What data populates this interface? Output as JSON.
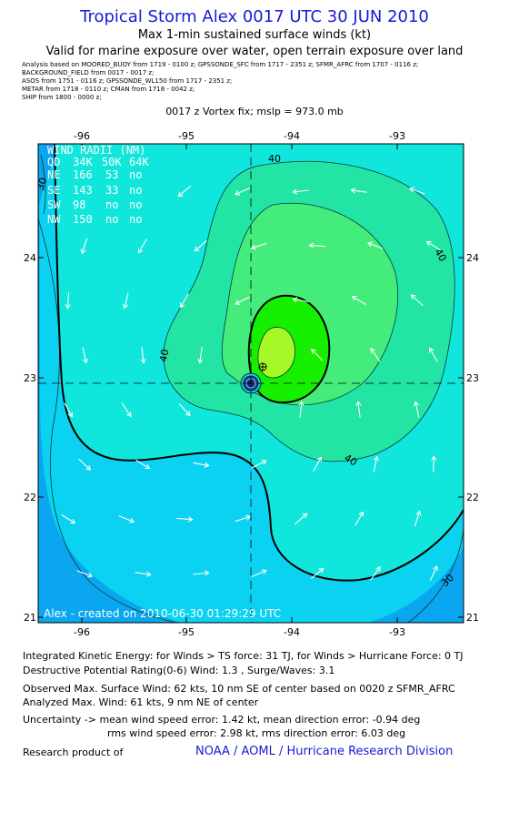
{
  "header": {
    "title": "Tropical Storm Alex 0017 UTC 30 JUN 2010",
    "subtitle": "Max 1-min sustained surface winds (kt)",
    "valid": "Valid for marine exposure over water, open terrain exposure over land"
  },
  "sources": [
    "Analysis based on  MOORED_BUOY from 1719 - 0100 z;  GPSSONDE_SFC from 1717 - 2351 z;  SFMR_AFRC from 1707 - 0116 z;",
    "BACKGROUND_FIELD from 0017 - 0017 z;",
    "ASOS from 1751 - 0116 z;  GPSSONDE_WL150 from 1717 - 2351 z;",
    "METAR from 1718 - 0110 z;  CMAN from 1718 - 0042 z;",
    "SHIP from 1800 - 0000 z;"
  ],
  "vortex_fix": "0017 z Vortex fix; mslp = 973.0 mb",
  "map": {
    "lon_ticks": [
      "-96",
      "-95",
      "-94",
      "-93"
    ],
    "lat_ticks": [
      "24",
      "23",
      "22",
      "21"
    ],
    "center": {
      "lon": -94.61,
      "lat": 22.95
    },
    "contour_labels": [
      "40",
      "40",
      "40",
      "30",
      "30",
      "40"
    ],
    "credit": "Alex  -  created on  2010-06-30 01:29:29 UTC",
    "colors": {
      "background": "#0ad2f0",
      "outer_blue": "#0aa6f0",
      "band_30_40": "#10e6dc",
      "band_40_50": "#22e4a4",
      "band_50_64": "#44ec7c",
      "band_64_80": "#16f000",
      "core": "#a6f826",
      "eye": "#1c4a96"
    }
  },
  "wind_radii": {
    "title": "WIND RADII (NM)",
    "header": [
      "QD",
      "34K",
      "50K",
      "64K"
    ],
    "rows": [
      [
        "NE",
        "166",
        "53",
        "no"
      ],
      [
        "SE",
        "143",
        "33",
        "no"
      ],
      [
        "SW",
        "98",
        "no",
        "no"
      ],
      [
        "NW",
        "150",
        "no",
        "no"
      ]
    ]
  },
  "info": {
    "ike": "Integrated Kinetic Energy:  for Winds > TS force: 31 TJ,  for Winds > Hurricane Force: 0 TJ",
    "dpr": "Destructive Potential Rating(0-6)   Wind: 1.3 , Surge/Waves: 3.1",
    "observed": "Observed Max. Surface Wind: 62 kts, 10 nm SE of center based on 0020 z SFMR_AFRC",
    "analyzed": "Analyzed Max. Wind: 61 kts, 9 nm NE of center",
    "uncertainty1": "Uncertainty -> mean wind speed error: 1.42 kt,   mean direction error:  -0.94 deg",
    "uncertainty2": "rms wind speed error: 2.98 kt,   rms direction error: 6.03 deg",
    "research": "Research product of",
    "org": "NOAA / AOML / Hurricane Research Division"
  }
}
